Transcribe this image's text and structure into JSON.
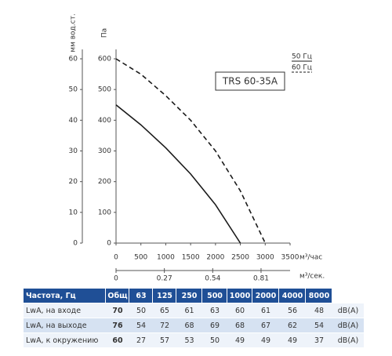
{
  "chart_data": {
    "type": "line",
    "title": "TRS 60-35A",
    "y_label": "Па",
    "y2_label": "мм вод.ст.",
    "x_label": "м³/час",
    "x2_label": "м³/сек.",
    "x": [
      0,
      500,
      1000,
      1500,
      2000,
      2500,
      3000
    ],
    "series": [
      {
        "name": "50 Гц",
        "color": "#1a1a1a",
        "dashed": false,
        "values": [
          450,
          385,
          310,
          225,
          125,
          0,
          null
        ]
      },
      {
        "name": "60 Гц",
        "color": "#1a1a1a",
        "dashed": true,
        "values": [
          600,
          550,
          480,
          400,
          300,
          170,
          0
        ]
      }
    ],
    "xlim": [
      0,
      3500
    ],
    "xticks": [
      0,
      500,
      1000,
      1500,
      2000,
      2500,
      3000,
      3500
    ],
    "x2lim": [
      0,
      0.9722
    ],
    "x2ticks": [
      0,
      0.27,
      0.54,
      0.81
    ],
    "ylim": [
      0,
      600
    ],
    "yticks": [
      0,
      100,
      200,
      300,
      400,
      500,
      600
    ],
    "y2lim": [
      0,
      60
    ],
    "y2ticks": [
      0,
      10,
      20,
      30,
      40,
      50,
      60
    ]
  },
  "table": {
    "header": [
      "Частота, Гц",
      "Общ",
      "63",
      "125",
      "250",
      "500",
      "1000",
      "2000",
      "4000",
      "8000"
    ],
    "rows": [
      [
        "LwA, на входе",
        "70",
        "50",
        "65",
        "61",
        "63",
        "60",
        "61",
        "56",
        "48",
        "dB(A)"
      ],
      [
        "LwA, на выходе",
        "76",
        "54",
        "72",
        "68",
        "69",
        "68",
        "67",
        "62",
        "54",
        "dB(A)"
      ],
      [
        "LwA, к окружению",
        "60",
        "27",
        "57",
        "53",
        "50",
        "49",
        "49",
        "49",
        "37",
        "dB(A)"
      ]
    ]
  }
}
